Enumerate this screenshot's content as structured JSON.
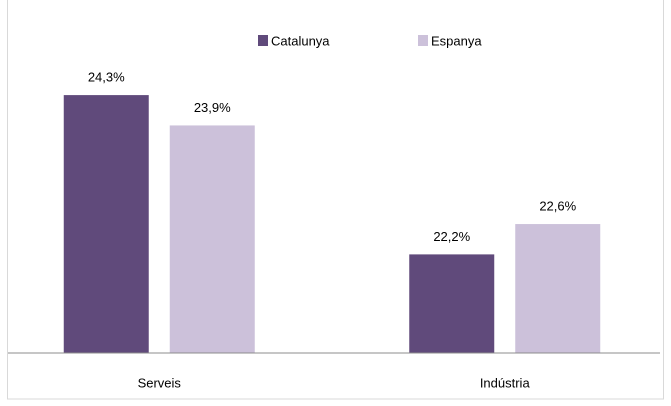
{
  "chart_data": {
    "type": "bar",
    "categories": [
      "Serveis",
      "Indústria"
    ],
    "series": [
      {
        "name": "Catalunya",
        "color": "#604a7b",
        "values": [
          24.3,
          22.2
        ],
        "value_labels": [
          "24,3%",
          "22,2%"
        ]
      },
      {
        "name": "Espanya",
        "color": "#ccc1da",
        "values": [
          23.9,
          22.6
        ],
        "value_labels": [
          "23,9%",
          "22,6%"
        ]
      }
    ],
    "ylim": [
      20.9,
      25
    ],
    "legend": "top"
  }
}
